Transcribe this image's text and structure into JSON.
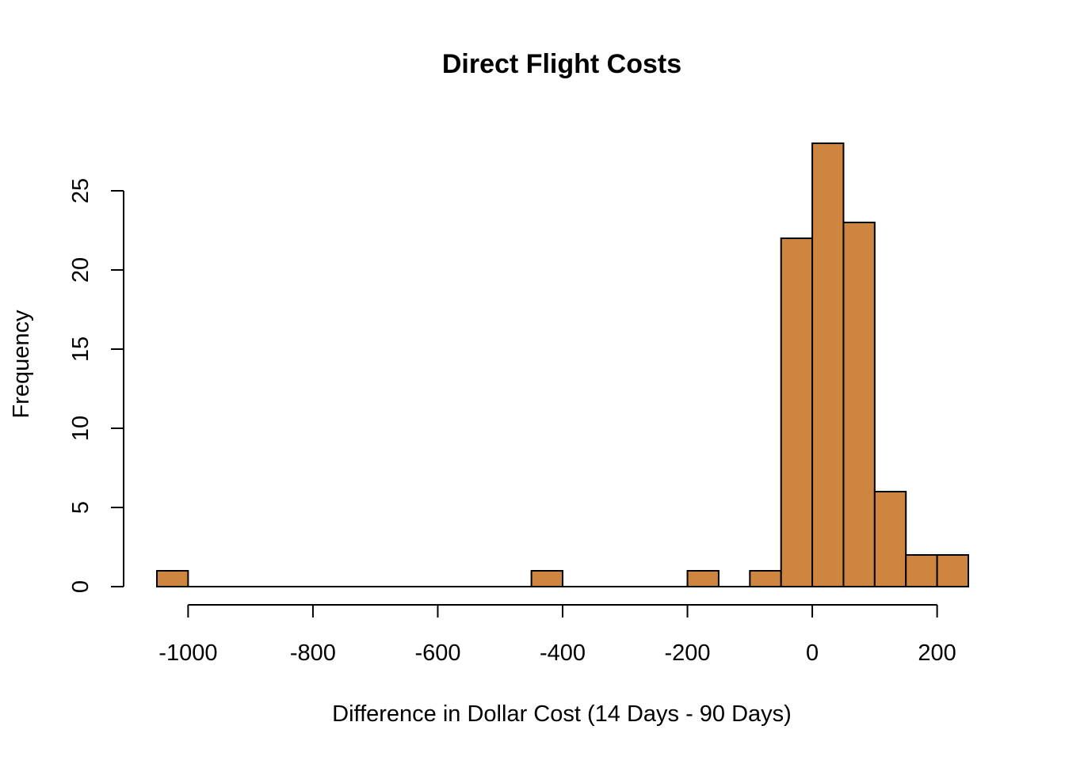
{
  "chart_data": {
    "type": "bar",
    "title": "Direct Flight Costs",
    "xlabel": "Difference in Dollar Cost (14 Days - 90 Days)",
    "ylabel": "Frequency",
    "bin_width": 50,
    "bins": [
      {
        "start": -1050,
        "end": -1000,
        "count": 1
      },
      {
        "start": -450,
        "end": -400,
        "count": 1
      },
      {
        "start": -200,
        "end": -150,
        "count": 1
      },
      {
        "start": -100,
        "end": -50,
        "count": 1
      },
      {
        "start": -50,
        "end": 0,
        "count": 22
      },
      {
        "start": 0,
        "end": 50,
        "count": 28
      },
      {
        "start": 50,
        "end": 100,
        "count": 23
      },
      {
        "start": 100,
        "end": 150,
        "count": 6
      },
      {
        "start": 150,
        "end": 200,
        "count": 2
      },
      {
        "start": 200,
        "end": 250,
        "count": 2
      }
    ],
    "xlim": [
      -1050,
      250
    ],
    "ylim": [
      0,
      28
    ],
    "x_ticks": [
      -1000,
      -800,
      -600,
      -400,
      -200,
      0,
      200
    ],
    "x_tick_labels": [
      "-1000",
      "-800",
      "-600",
      "-400",
      "-200",
      "0",
      "200"
    ],
    "y_ticks": [
      0,
      5,
      10,
      15,
      20,
      25
    ],
    "y_tick_labels": [
      "0",
      "5",
      "10",
      "15",
      "20",
      "25"
    ],
    "grid": false,
    "bar_color": "#CD853F",
    "bar_border_color": "#000000"
  }
}
